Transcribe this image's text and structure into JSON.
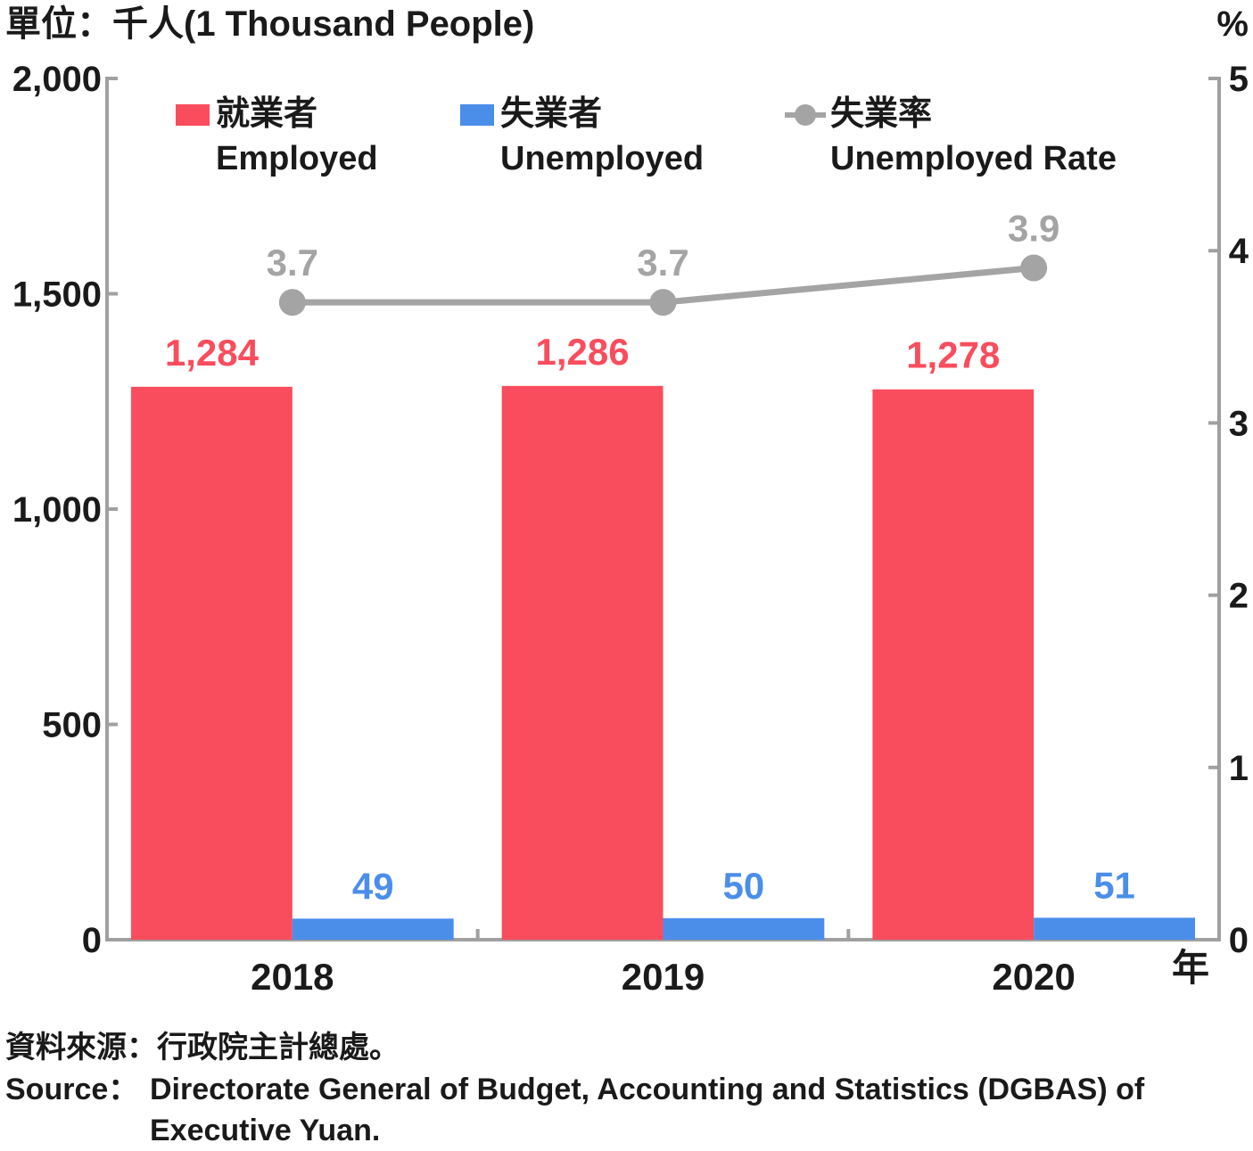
{
  "chart_data": {
    "type": "bar",
    "categories": [
      "2018",
      "2019",
      "2020"
    ],
    "series": [
      {
        "name_zh": "就業者",
        "name": "Employed",
        "axis": "left",
        "values": [
          1284,
          1286,
          1278
        ],
        "labels": [
          "1,284",
          "1,286",
          "1,278"
        ],
        "color": "#f94d5d"
      },
      {
        "name_zh": "失業者",
        "name": "Unemployed",
        "axis": "left",
        "values": [
          49,
          50,
          51
        ],
        "labels": [
          "49",
          "50",
          "51"
        ],
        "color": "#4b8eea"
      },
      {
        "name_zh": "失業率",
        "name": "Unemployed Rate",
        "axis": "right",
        "type": "line",
        "values": [
          3.7,
          3.7,
          3.9
        ],
        "labels": [
          "3.7",
          "3.7",
          "3.9"
        ],
        "color": "#a4a4a4"
      }
    ],
    "y_left": {
      "label": "單位：千人(1 Thousand People)",
      "ylim": [
        0,
        2000
      ],
      "ticks": [
        "0",
        "500",
        "1,000",
        "1,500",
        "2,000"
      ],
      "tick_values": [
        0,
        500,
        1000,
        1500,
        2000
      ]
    },
    "y_right": {
      "label": "%",
      "ylim": [
        0,
        5
      ],
      "ticks": [
        "0",
        "1",
        "2",
        "3",
        "4",
        "5"
      ],
      "tick_values": [
        0,
        1,
        2,
        3,
        4,
        5
      ]
    },
    "x_unit": "年",
    "legend_position": "top",
    "grid": false
  },
  "source": {
    "zh": "資料來源：行政院主計總處。",
    "en_prefix": "Source：",
    "en_line1": "Directorate General of Budget, Accounting and Statistics (DGBAS) of",
    "en_line2": "Executive Yuan."
  }
}
